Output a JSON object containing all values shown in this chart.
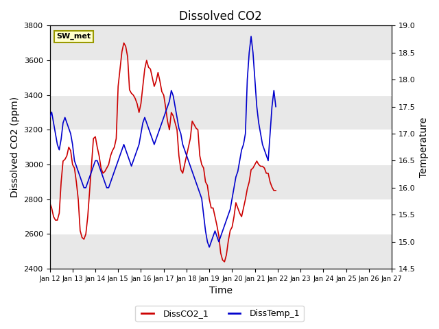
{
  "title": "Dissolved CO2",
  "xlabel": "Time",
  "ylabel_left": "Dissolved CO2 (ppm)",
  "ylabel_right": "Temperature",
  "left_ylim": [
    2400,
    3800
  ],
  "right_ylim": [
    14.5,
    19.0
  ],
  "left_yticks": [
    2400,
    2600,
    2800,
    3000,
    3200,
    3400,
    3600,
    3800
  ],
  "right_yticks": [
    14.5,
    15.0,
    15.5,
    16.0,
    16.5,
    17.0,
    17.5,
    18.0,
    18.5,
    19.0
  ],
  "co2_color": "#cc0000",
  "temp_color": "#0000cc",
  "legend_label_co2": "DissCO2_1",
  "legend_label_temp": "DissTemp_1",
  "sw_met_label": "SW_met",
  "background_color": "#ffffff",
  "band_color": "#e8e8e8",
  "title_fontsize": 12,
  "axis_label_fontsize": 10,
  "tick_fontsize": 8,
  "co2_data_hours": [
    0,
    2,
    4,
    6,
    8,
    10,
    12,
    14,
    16,
    18,
    20,
    22,
    24,
    26,
    28,
    30,
    32,
    34,
    36,
    38,
    40,
    42,
    44,
    46,
    48,
    50,
    52,
    54,
    56,
    58,
    60,
    62,
    64,
    66,
    68,
    70,
    72,
    74,
    76,
    78,
    80,
    82,
    84,
    86,
    88,
    90,
    92,
    94,
    96,
    98,
    100,
    102,
    104,
    106,
    108,
    110,
    112,
    114,
    116,
    118,
    120,
    122,
    124,
    126,
    128,
    130,
    132,
    134,
    136,
    138,
    140,
    142,
    144,
    146,
    148,
    150,
    152,
    154,
    156,
    158,
    160,
    162,
    164,
    166,
    168,
    170,
    172,
    174,
    176,
    178,
    180,
    182,
    184,
    186,
    188,
    190,
    192,
    194,
    196,
    198,
    200,
    202,
    204,
    206,
    208,
    210,
    212,
    214,
    216,
    218,
    220,
    222,
    224,
    226,
    228,
    230,
    232,
    234,
    236,
    238
  ],
  "co2_values": [
    2780,
    2750,
    2700,
    2680,
    2680,
    2720,
    2900,
    3020,
    3030,
    3050,
    3100,
    3080,
    3000,
    2980,
    2900,
    2800,
    2620,
    2580,
    2570,
    2600,
    2700,
    2850,
    3000,
    3150,
    3160,
    3100,
    3050,
    2980,
    2950,
    2960,
    2980,
    3000,
    3050,
    3080,
    3100,
    3150,
    3450,
    3550,
    3650,
    3700,
    3680,
    3620,
    3430,
    3410,
    3400,
    3380,
    3350,
    3300,
    3350,
    3450,
    3550,
    3600,
    3560,
    3550,
    3500,
    3450,
    3480,
    3530,
    3480,
    3420,
    3400,
    3330,
    3250,
    3200,
    3300,
    3280,
    3240,
    3200,
    3050,
    2970,
    2950,
    3000,
    3050,
    3100,
    3150,
    3250,
    3230,
    3210,
    3200,
    3050,
    3000,
    2980,
    2900,
    2880,
    2800,
    2750,
    2750,
    2700,
    2650,
    2590,
    2490,
    2450,
    2440,
    2480,
    2560,
    2620,
    2640,
    2700,
    2780,
    2750,
    2720,
    2700,
    2750,
    2800,
    2860,
    2900,
    2970,
    2980,
    3000,
    3020,
    3000,
    2990,
    2990,
    2980,
    2950,
    2950,
    2900,
    2870,
    2850,
    2850
  ],
  "temp_data_hours": [
    0,
    2,
    4,
    6,
    8,
    10,
    12,
    14,
    16,
    18,
    20,
    22,
    24,
    26,
    28,
    30,
    32,
    34,
    36,
    38,
    40,
    42,
    44,
    46,
    48,
    50,
    52,
    54,
    56,
    58,
    60,
    62,
    64,
    66,
    68,
    70,
    72,
    74,
    76,
    78,
    80,
    82,
    84,
    86,
    88,
    90,
    92,
    94,
    96,
    98,
    100,
    102,
    104,
    106,
    108,
    110,
    112,
    114,
    116,
    118,
    120,
    122,
    124,
    126,
    128,
    130,
    132,
    134,
    136,
    138,
    140,
    142,
    144,
    146,
    148,
    150,
    152,
    154,
    156,
    158,
    160,
    162,
    164,
    166,
    168,
    170,
    172,
    174,
    176,
    178,
    180,
    182,
    184,
    186,
    188,
    190,
    192,
    194,
    196,
    198,
    200,
    202,
    204,
    206,
    208,
    210,
    212,
    214,
    216,
    218,
    220,
    222,
    224,
    226,
    228,
    230,
    232,
    234,
    236,
    238
  ],
  "temp_values": [
    17.3,
    17.4,
    17.2,
    17.0,
    16.8,
    16.7,
    16.9,
    17.2,
    17.3,
    17.2,
    17.1,
    17.0,
    16.8,
    16.5,
    16.4,
    16.3,
    16.2,
    16.1,
    16.0,
    16.0,
    16.1,
    16.2,
    16.3,
    16.4,
    16.5,
    16.5,
    16.4,
    16.3,
    16.2,
    16.1,
    16.0,
    16.0,
    16.1,
    16.2,
    16.3,
    16.4,
    16.5,
    16.6,
    16.7,
    16.8,
    16.7,
    16.6,
    16.5,
    16.4,
    16.5,
    16.6,
    16.7,
    16.8,
    17.0,
    17.2,
    17.3,
    17.2,
    17.1,
    17.0,
    16.9,
    16.8,
    16.9,
    17.0,
    17.1,
    17.2,
    17.3,
    17.4,
    17.5,
    17.6,
    17.8,
    17.7,
    17.5,
    17.3,
    17.1,
    17.0,
    16.8,
    16.7,
    16.6,
    16.5,
    16.4,
    16.3,
    16.2,
    16.1,
    16.0,
    15.9,
    15.8,
    15.5,
    15.2,
    15.0,
    14.9,
    15.0,
    15.1,
    15.2,
    15.1,
    15.0,
    15.1,
    15.2,
    15.3,
    15.4,
    15.5,
    15.6,
    15.8,
    16.0,
    16.2,
    16.3,
    16.5,
    16.7,
    16.8,
    17.0,
    18.0,
    18.5,
    18.8,
    18.5,
    18.0,
    17.5,
    17.2,
    17.0,
    16.8,
    16.7,
    16.6,
    16.5,
    17.0,
    17.5,
    17.8,
    17.5
  ]
}
